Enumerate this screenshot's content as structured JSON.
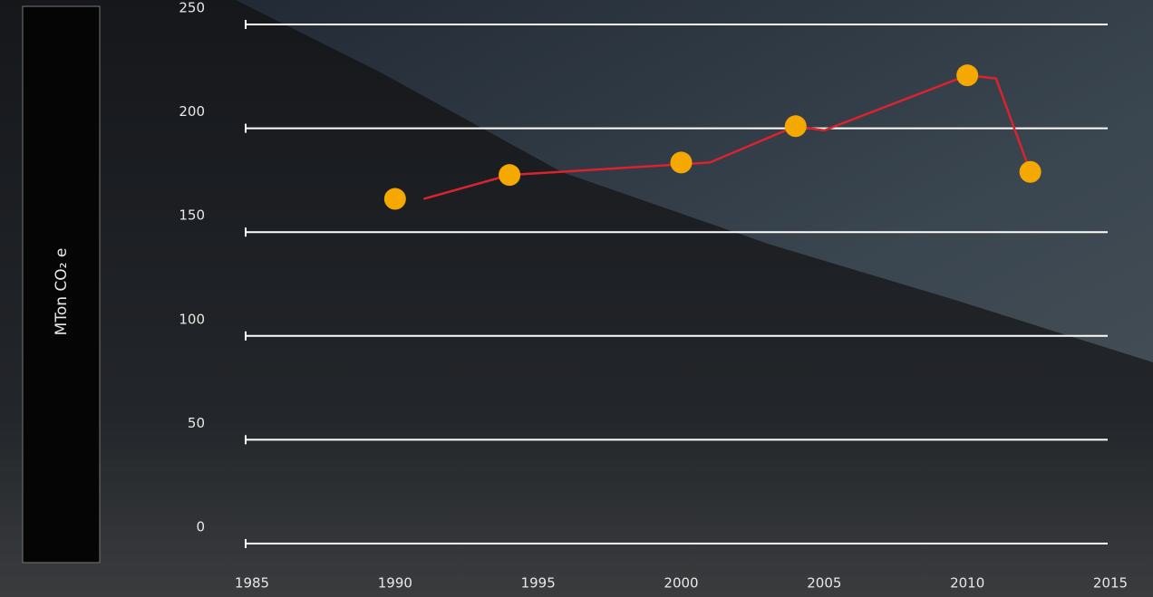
{
  "chart_data": {
    "type": "line",
    "y_label": "MTon CO₂ e",
    "xlim": [
      1985,
      2015
    ],
    "xticks": [
      1985,
      1990,
      1995,
      2000,
      2005,
      2010,
      2015
    ],
    "ylim": [
      0,
      250
    ],
    "yticks": [
      0,
      50,
      100,
      150,
      200,
      250
    ],
    "grid": true,
    "series": [
      {
        "type": "line",
        "color": "#d9232e",
        "x": [
          1991,
          1994,
          2001,
          2004,
          2005,
          2010,
          2011,
          2012.2
        ],
        "values": [
          166,
          177.5,
          183.5,
          201,
          199,
          225.5,
          224,
          179
        ]
      },
      {
        "type": "scatter",
        "color": "#f5a800",
        "x": [
          1990,
          1994,
          2000,
          2004,
          2010,
          2012.2
        ],
        "values": [
          166,
          177.5,
          183.5,
          201,
          225.5,
          179
        ]
      }
    ]
  }
}
